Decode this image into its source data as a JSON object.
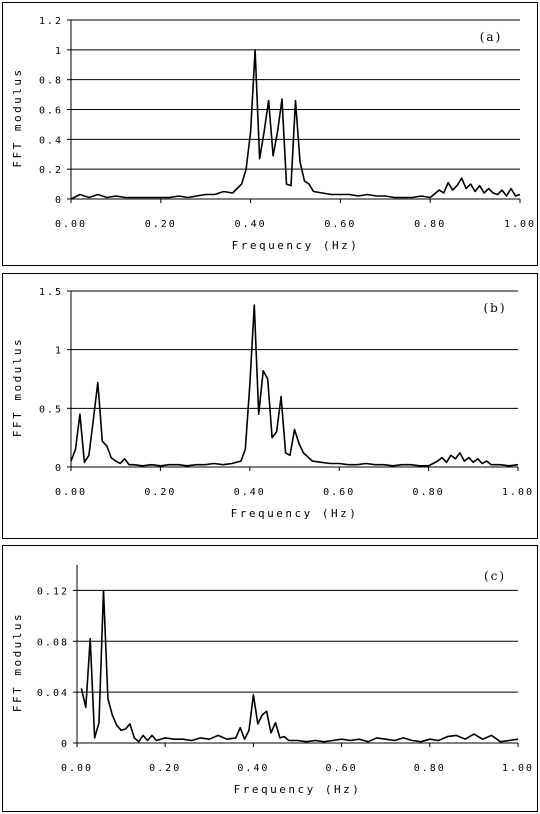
{
  "chart_data": [
    {
      "type": "line",
      "panel_label": "(a)",
      "xlabel": "Frequency (Hz)",
      "ylabel": "FFT modulus",
      "xlim": [
        0,
        1
      ],
      "ylim": [
        0,
        1.2
      ],
      "xticks": [
        "0.00",
        "0.20",
        "0.40",
        "0.60",
        "0.80",
        "1.00"
      ],
      "yticks": [
        "0",
        "0.2",
        "0.4",
        "0.6",
        "0.8",
        "1",
        "1.2"
      ],
      "grid": true,
      "x": [
        0.0,
        0.02,
        0.04,
        0.06,
        0.08,
        0.1,
        0.12,
        0.14,
        0.16,
        0.18,
        0.2,
        0.22,
        0.24,
        0.26,
        0.28,
        0.3,
        0.32,
        0.34,
        0.36,
        0.38,
        0.39,
        0.4,
        0.41,
        0.42,
        0.43,
        0.44,
        0.45,
        0.46,
        0.47,
        0.48,
        0.49,
        0.5,
        0.51,
        0.52,
        0.53,
        0.54,
        0.56,
        0.58,
        0.6,
        0.62,
        0.64,
        0.66,
        0.68,
        0.7,
        0.72,
        0.74,
        0.76,
        0.78,
        0.8,
        0.82,
        0.83,
        0.84,
        0.85,
        0.86,
        0.87,
        0.88,
        0.89,
        0.9,
        0.91,
        0.92,
        0.93,
        0.94,
        0.95,
        0.96,
        0.97,
        0.98,
        0.99,
        1.0
      ],
      "y": [
        0.0,
        0.03,
        0.01,
        0.03,
        0.01,
        0.02,
        0.01,
        0.01,
        0.01,
        0.01,
        0.01,
        0.01,
        0.02,
        0.01,
        0.02,
        0.03,
        0.03,
        0.05,
        0.04,
        0.1,
        0.2,
        0.45,
        1.0,
        0.27,
        0.45,
        0.66,
        0.29,
        0.45,
        0.67,
        0.1,
        0.09,
        0.66,
        0.25,
        0.12,
        0.1,
        0.05,
        0.04,
        0.03,
        0.03,
        0.03,
        0.02,
        0.03,
        0.02,
        0.02,
        0.01,
        0.01,
        0.01,
        0.02,
        0.01,
        0.06,
        0.04,
        0.11,
        0.06,
        0.09,
        0.14,
        0.07,
        0.1,
        0.05,
        0.09,
        0.04,
        0.07,
        0.04,
        0.03,
        0.06,
        0.02,
        0.07,
        0.02,
        0.03
      ]
    },
    {
      "type": "line",
      "panel_label": "(b)",
      "xlabel": "Frequency (Hz)",
      "ylabel": "FFT modulus",
      "xlim": [
        0,
        1
      ],
      "ylim": [
        0,
        1.5
      ],
      "xticks": [
        "0.00",
        "0.20",
        "0.40",
        "0.60",
        "0.80",
        "1.00"
      ],
      "yticks": [
        "0",
        "0.5",
        "1",
        "1.5"
      ],
      "grid": true,
      "x": [
        0.0,
        0.01,
        0.02,
        0.03,
        0.04,
        0.05,
        0.06,
        0.07,
        0.08,
        0.09,
        0.1,
        0.11,
        0.12,
        0.13,
        0.14,
        0.16,
        0.18,
        0.2,
        0.22,
        0.24,
        0.26,
        0.28,
        0.3,
        0.32,
        0.34,
        0.36,
        0.38,
        0.39,
        0.4,
        0.41,
        0.42,
        0.43,
        0.44,
        0.45,
        0.46,
        0.47,
        0.48,
        0.49,
        0.5,
        0.51,
        0.52,
        0.54,
        0.56,
        0.58,
        0.6,
        0.62,
        0.64,
        0.66,
        0.68,
        0.7,
        0.72,
        0.74,
        0.76,
        0.78,
        0.8,
        0.81,
        0.82,
        0.83,
        0.84,
        0.85,
        0.86,
        0.87,
        0.88,
        0.89,
        0.9,
        0.91,
        0.92,
        0.93,
        0.94,
        0.96,
        0.98,
        1.0
      ],
      "y": [
        0.05,
        0.15,
        0.45,
        0.04,
        0.1,
        0.4,
        0.72,
        0.22,
        0.18,
        0.08,
        0.05,
        0.03,
        0.07,
        0.02,
        0.02,
        0.01,
        0.02,
        0.01,
        0.02,
        0.02,
        0.01,
        0.02,
        0.02,
        0.03,
        0.02,
        0.03,
        0.05,
        0.15,
        0.7,
        1.38,
        0.45,
        0.82,
        0.75,
        0.25,
        0.3,
        0.6,
        0.12,
        0.1,
        0.32,
        0.2,
        0.12,
        0.05,
        0.04,
        0.03,
        0.03,
        0.02,
        0.02,
        0.03,
        0.02,
        0.02,
        0.01,
        0.02,
        0.02,
        0.01,
        0.01,
        0.03,
        0.05,
        0.08,
        0.04,
        0.1,
        0.07,
        0.12,
        0.05,
        0.08,
        0.04,
        0.07,
        0.03,
        0.05,
        0.02,
        0.02,
        0.01,
        0.02
      ]
    },
    {
      "type": "line",
      "panel_label": "(c)",
      "xlabel": "Frequency (Hz)",
      "ylabel": "FFT modulus",
      "xlim": [
        0,
        1
      ],
      "ylim": [
        0,
        0.14
      ],
      "xticks": [
        "0.00",
        "0.20",
        "0.40",
        "0.60",
        "0.80",
        "1.00"
      ],
      "yticks": [
        "0",
        "0.04",
        "0.08",
        "0.12"
      ],
      "grid": true,
      "x": [
        0.01,
        0.02,
        0.03,
        0.04,
        0.05,
        0.06,
        0.07,
        0.08,
        0.09,
        0.1,
        0.11,
        0.12,
        0.13,
        0.14,
        0.15,
        0.16,
        0.17,
        0.18,
        0.2,
        0.22,
        0.24,
        0.26,
        0.28,
        0.3,
        0.32,
        0.34,
        0.36,
        0.37,
        0.38,
        0.39,
        0.4,
        0.41,
        0.42,
        0.43,
        0.44,
        0.45,
        0.46,
        0.47,
        0.48,
        0.5,
        0.52,
        0.54,
        0.56,
        0.58,
        0.6,
        0.62,
        0.64,
        0.66,
        0.68,
        0.7,
        0.72,
        0.74,
        0.76,
        0.78,
        0.8,
        0.82,
        0.84,
        0.86,
        0.88,
        0.9,
        0.92,
        0.94,
        0.96,
        0.98,
        1.0
      ],
      "y": [
        0.043,
        0.028,
        0.082,
        0.004,
        0.016,
        0.12,
        0.035,
        0.022,
        0.014,
        0.01,
        0.011,
        0.015,
        0.004,
        0.001,
        0.006,
        0.002,
        0.006,
        0.002,
        0.004,
        0.003,
        0.003,
        0.002,
        0.004,
        0.003,
        0.006,
        0.003,
        0.004,
        0.012,
        0.003,
        0.01,
        0.038,
        0.015,
        0.022,
        0.025,
        0.008,
        0.016,
        0.004,
        0.005,
        0.002,
        0.002,
        0.001,
        0.002,
        0.001,
        0.002,
        0.003,
        0.002,
        0.003,
        0.001,
        0.004,
        0.003,
        0.002,
        0.004,
        0.002,
        0.001,
        0.003,
        0.002,
        0.005,
        0.006,
        0.003,
        0.007,
        0.003,
        0.006,
        0.001,
        0.002,
        0.003
      ]
    }
  ]
}
